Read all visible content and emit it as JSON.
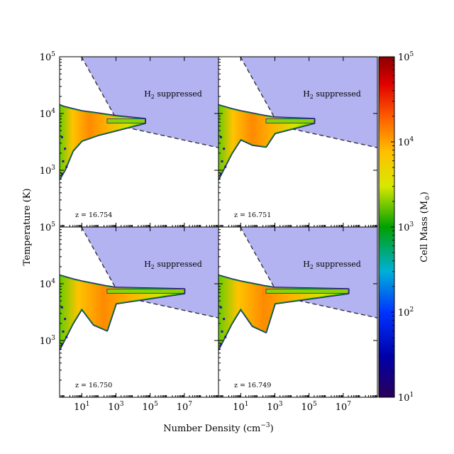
{
  "chart_data": {
    "type": "heatmap",
    "layout": "2x2 panels with shared axes and colorbar",
    "xlabel_text": "Number Density (cm",
    "xlabel_exp": "−3",
    "xlabel_close": ")",
    "ylabel": "Temperature (K)",
    "xscale": "log",
    "yscale": "log",
    "xlim": [
      0.5,
      1000000000
    ],
    "ylim": [
      100,
      100000
    ],
    "x_tick_values": [
      10,
      1000,
      100000,
      10000000
    ],
    "y_tick_values": [
      1000,
      10000,
      100000
    ],
    "tick_base": "10",
    "x_tick_exponents": [
      "1",
      "3",
      "5",
      "7"
    ],
    "y_tick_exponents": [
      "3",
      "4",
      "5"
    ],
    "colorbar": {
      "label_text": "Cell Mass (M",
      "label_sub": "⊙",
      "label_close": ")",
      "scale": "log",
      "range": [
        10,
        100000
      ],
      "tick_values": [
        10,
        100,
        1000,
        10000,
        100000
      ],
      "tick_exponents": [
        "1",
        "2",
        "3",
        "4",
        "5"
      ],
      "colormap": "jet"
    },
    "suppressed_region": {
      "label_main": "H",
      "label_sub": "2",
      "label_rest": " suppressed",
      "fill_color": "#b3b3f2",
      "boundary_style": "dashed",
      "boundary_points": [
        [
          9.5,
          100000
        ],
        [
          1800,
          6000
        ],
        [
          1000000000,
          2500
        ]
      ]
    },
    "panels": [
      {
        "redshift_label": "z = 16.754",
        "position": "top-left",
        "dip": false,
        "tail_x_max": 50000,
        "temperature_curve": [
          {
            "n": 0.5,
            "T_low": 700,
            "T_high": 14000
          },
          {
            "n": 1,
            "T_low": 1000,
            "T_high": 13000
          },
          {
            "n": 3,
            "T_low": 2200,
            "T_high": 12000
          },
          {
            "n": 10,
            "T_low": 3300,
            "T_high": 11000
          },
          {
            "n": 100,
            "T_low": 4200,
            "T_high": 10000
          },
          {
            "n": 1000,
            "T_low": 5000,
            "T_high": 9000
          },
          {
            "n": 50000,
            "T_low": 6800,
            "T_high": 8000
          }
        ]
      },
      {
        "redshift_label": "z = 16.751",
        "position": "top-right",
        "dip": true,
        "dip_bottom_T": 2700,
        "tail_x_max": 200000,
        "temperature_curve": [
          {
            "n": 0.5,
            "T_low": 700,
            "T_high": 14000
          },
          {
            "n": 3,
            "T_low": 2000,
            "T_high": 12000
          },
          {
            "n": 10,
            "T_low": 3500,
            "T_high": 11000
          },
          {
            "n": 50,
            "T_low": 2800,
            "T_high": 10000
          },
          {
            "n": 300,
            "T_low": 2600,
            "T_high": 9000
          },
          {
            "n": 1000,
            "T_low": 4500,
            "T_high": 8500
          },
          {
            "n": 200000,
            "T_low": 6800,
            "T_high": 8000
          }
        ]
      },
      {
        "redshift_label": "z = 16.750",
        "position": "bottom-left",
        "dip": true,
        "dip_bottom_T": 1600,
        "tail_x_max": 10000000,
        "temperature_curve": [
          {
            "n": 0.5,
            "T_low": 700,
            "T_high": 14000
          },
          {
            "n": 3,
            "T_low": 2000,
            "T_high": 12000
          },
          {
            "n": 10,
            "T_low": 3600,
            "T_high": 11000
          },
          {
            "n": 50,
            "T_low": 1900,
            "T_high": 10000
          },
          {
            "n": 300,
            "T_low": 1500,
            "T_high": 9000
          },
          {
            "n": 1000,
            "T_low": 4500,
            "T_high": 8500
          },
          {
            "n": 10000000,
            "T_low": 6800,
            "T_high": 8000
          }
        ]
      },
      {
        "redshift_label": "z = 16.749",
        "position": "bottom-right",
        "dip": true,
        "dip_bottom_T": 1500,
        "tail_x_max": 20000000,
        "temperature_curve": [
          {
            "n": 0.5,
            "T_low": 700,
            "T_high": 14000
          },
          {
            "n": 3,
            "T_low": 2000,
            "T_high": 12000
          },
          {
            "n": 10,
            "T_low": 3600,
            "T_high": 11000
          },
          {
            "n": 50,
            "T_low": 1800,
            "T_high": 10000
          },
          {
            "n": 300,
            "T_low": 1400,
            "T_high": 9000
          },
          {
            "n": 1000,
            "T_low": 4500,
            "T_high": 8500
          },
          {
            "n": 20000000,
            "T_low": 6800,
            "T_high": 8000
          }
        ]
      }
    ]
  }
}
